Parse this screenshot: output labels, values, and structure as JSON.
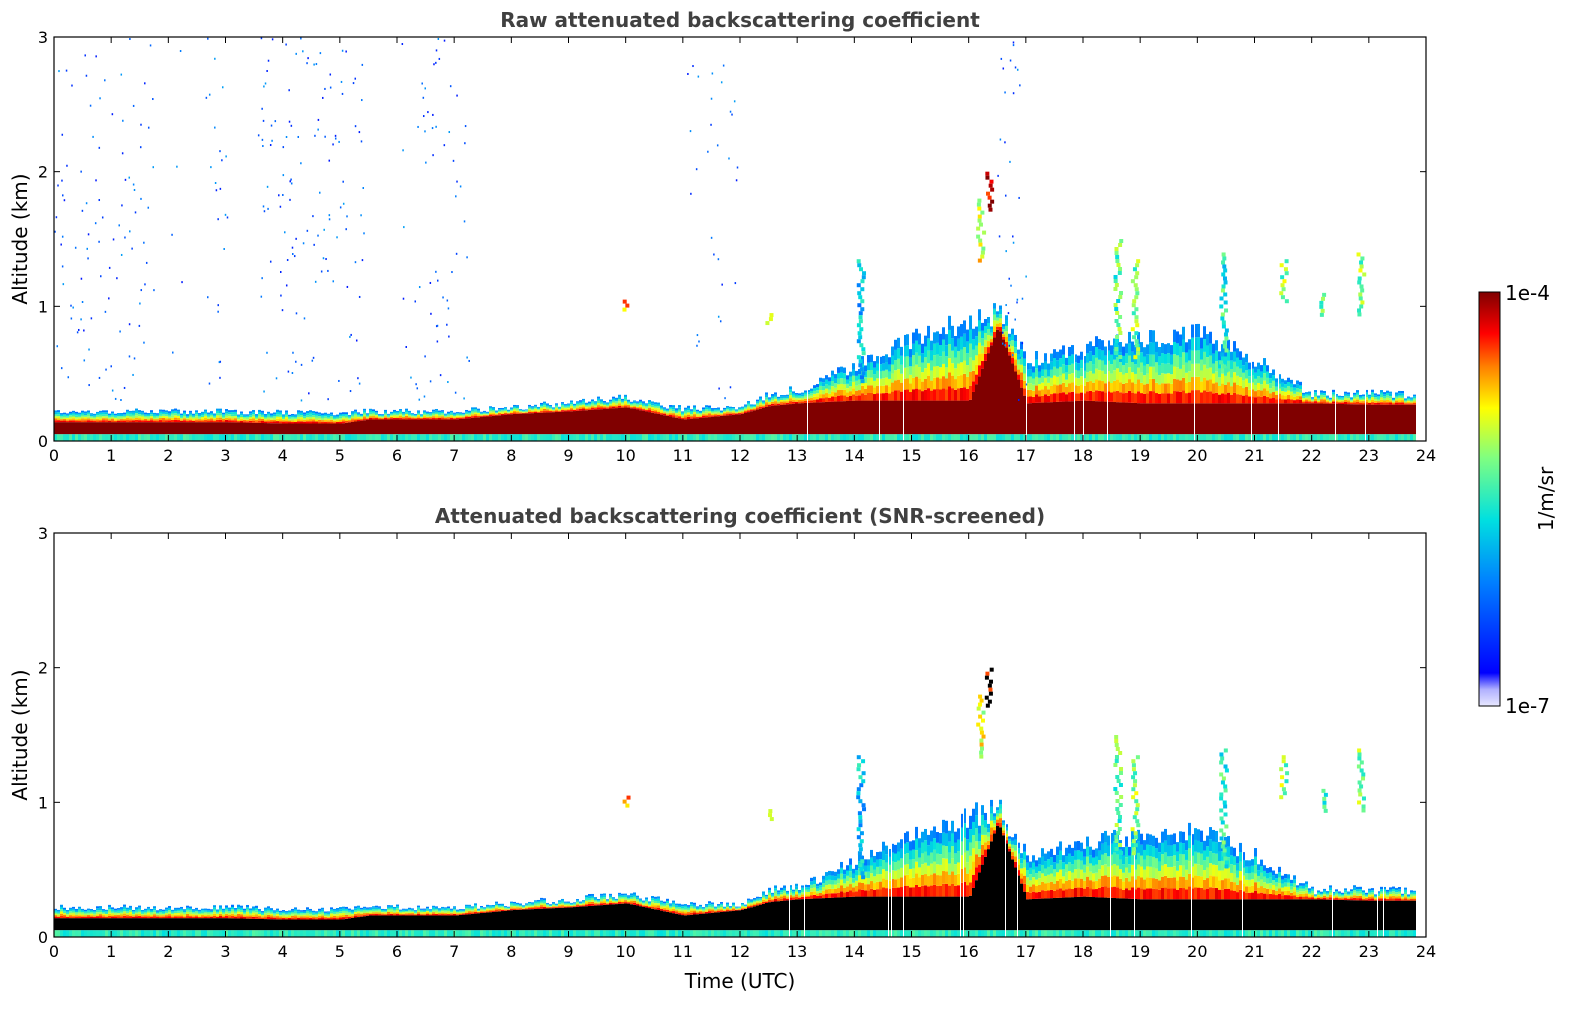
{
  "chart_data": [
    {
      "type": "heatmap",
      "title": "Raw attenuated backscattering coefficient",
      "xlabel": "",
      "ylabel": "Altitude (km)",
      "xlim": [
        0,
        24
      ],
      "ylim": [
        0,
        3
      ],
      "x_ticks": [
        "0",
        "1",
        "2",
        "3",
        "4",
        "5",
        "6",
        "7",
        "8",
        "9",
        "10",
        "11",
        "12",
        "13",
        "14",
        "15",
        "16",
        "17",
        "18",
        "19",
        "20",
        "21",
        "22",
        "23",
        "24"
      ],
      "y_ticks": [
        "0",
        "1",
        "2",
        "3"
      ],
      "data_end_hour": 23.8,
      "saturated_color": "#800000",
      "noise_speckle": [
        {
          "x_range": [
            0,
            1.6
          ],
          "max_alt": 3.0,
          "density": 0.35
        },
        {
          "x_range": [
            1.6,
            1.75
          ],
          "max_alt": 3.0,
          "density": 0.3
        },
        {
          "x_range": [
            2.05,
            2.25
          ],
          "max_alt": 3.0,
          "density": 0.15
        },
        {
          "x_range": [
            2.65,
            3.05
          ],
          "max_alt": 3.0,
          "density": 0.35
        },
        {
          "x_range": [
            3.55,
            5.45
          ],
          "max_alt": 3.0,
          "density": 0.4
        },
        {
          "x_range": [
            6.05,
            7.3
          ],
          "max_alt": 3.0,
          "density": 0.3
        },
        {
          "x_range": [
            11.05,
            12.0
          ],
          "max_alt": 3.0,
          "density": 0.2
        },
        {
          "x_range": [
            16.5,
            17.0
          ],
          "max_alt": 3.0,
          "density": 0.45
        }
      ]
    },
    {
      "type": "heatmap",
      "title": "Attenuated backscattering coefficient (SNR-screened)",
      "xlabel": "Time (UTC)",
      "ylabel": "Altitude (km)",
      "xlim": [
        0,
        24
      ],
      "ylim": [
        0,
        3
      ],
      "x_ticks": [
        "0",
        "1",
        "2",
        "3",
        "4",
        "5",
        "6",
        "7",
        "8",
        "9",
        "10",
        "11",
        "12",
        "13",
        "14",
        "15",
        "16",
        "17",
        "18",
        "19",
        "20",
        "21",
        "22",
        "23",
        "24"
      ],
      "y_ticks": [
        "0",
        "1",
        "2",
        "3"
      ],
      "data_end_hour": 23.8,
      "saturated_color": "#000000"
    }
  ],
  "layer_profile": {
    "hours": [
      0,
      1,
      2,
      3,
      4,
      5,
      5.5,
      6,
      7,
      8,
      9,
      10,
      11,
      12,
      12.5,
      13,
      14,
      15,
      16,
      16.5,
      17,
      18,
      19,
      20,
      21,
      22,
      23,
      23.8
    ],
    "pbl_top_km": [
      0.22,
      0.22,
      0.22,
      0.22,
      0.21,
      0.21,
      0.22,
      0.22,
      0.22,
      0.25,
      0.28,
      0.32,
      0.24,
      0.25,
      0.35,
      0.38,
      0.55,
      0.75,
      0.9,
      0.95,
      0.6,
      0.7,
      0.75,
      0.8,
      0.6,
      0.35,
      0.35,
      0.35
    ],
    "core_top_km": [
      0.14,
      0.14,
      0.14,
      0.14,
      0.13,
      0.13,
      0.16,
      0.16,
      0.16,
      0.2,
      0.22,
      0.25,
      0.16,
      0.2,
      0.26,
      0.28,
      0.3,
      0.3,
      0.3,
      0.85,
      0.28,
      0.3,
      0.28,
      0.28,
      0.28,
      0.28,
      0.27,
      0.27
    ]
  },
  "features": [
    {
      "x": 16.35,
      "bottom_km": 1.7,
      "top_km": 2.0,
      "level": 0.95
    },
    {
      "x": 16.2,
      "bottom_km": 1.3,
      "top_km": 1.8,
      "level": 0.7
    },
    {
      "x": 18.6,
      "bottom_km": 0.6,
      "top_km": 1.5,
      "level": 0.55
    },
    {
      "x": 18.9,
      "bottom_km": 0.6,
      "top_km": 1.35,
      "level": 0.6
    },
    {
      "x": 20.45,
      "bottom_km": 0.5,
      "top_km": 1.4,
      "level": 0.5
    },
    {
      "x": 21.5,
      "bottom_km": 1.0,
      "top_km": 1.35,
      "level": 0.6
    },
    {
      "x": 22.2,
      "bottom_km": 0.9,
      "top_km": 1.1,
      "level": 0.55
    },
    {
      "x": 22.85,
      "bottom_km": 0.9,
      "top_km": 1.4,
      "level": 0.6
    },
    {
      "x": 14.1,
      "bottom_km": 0.4,
      "top_km": 1.35,
      "level": 0.4
    },
    {
      "x": 12.5,
      "bottom_km": 0.85,
      "top_km": 0.95,
      "level": 0.6
    },
    {
      "x": 10.0,
      "bottom_km": 0.95,
      "top_km": 1.05,
      "level": 0.8
    }
  ],
  "colorbar": {
    "label": "1/m/sr",
    "max_label": "1e-4",
    "min_label": "1e-7",
    "colormap": "jet"
  }
}
